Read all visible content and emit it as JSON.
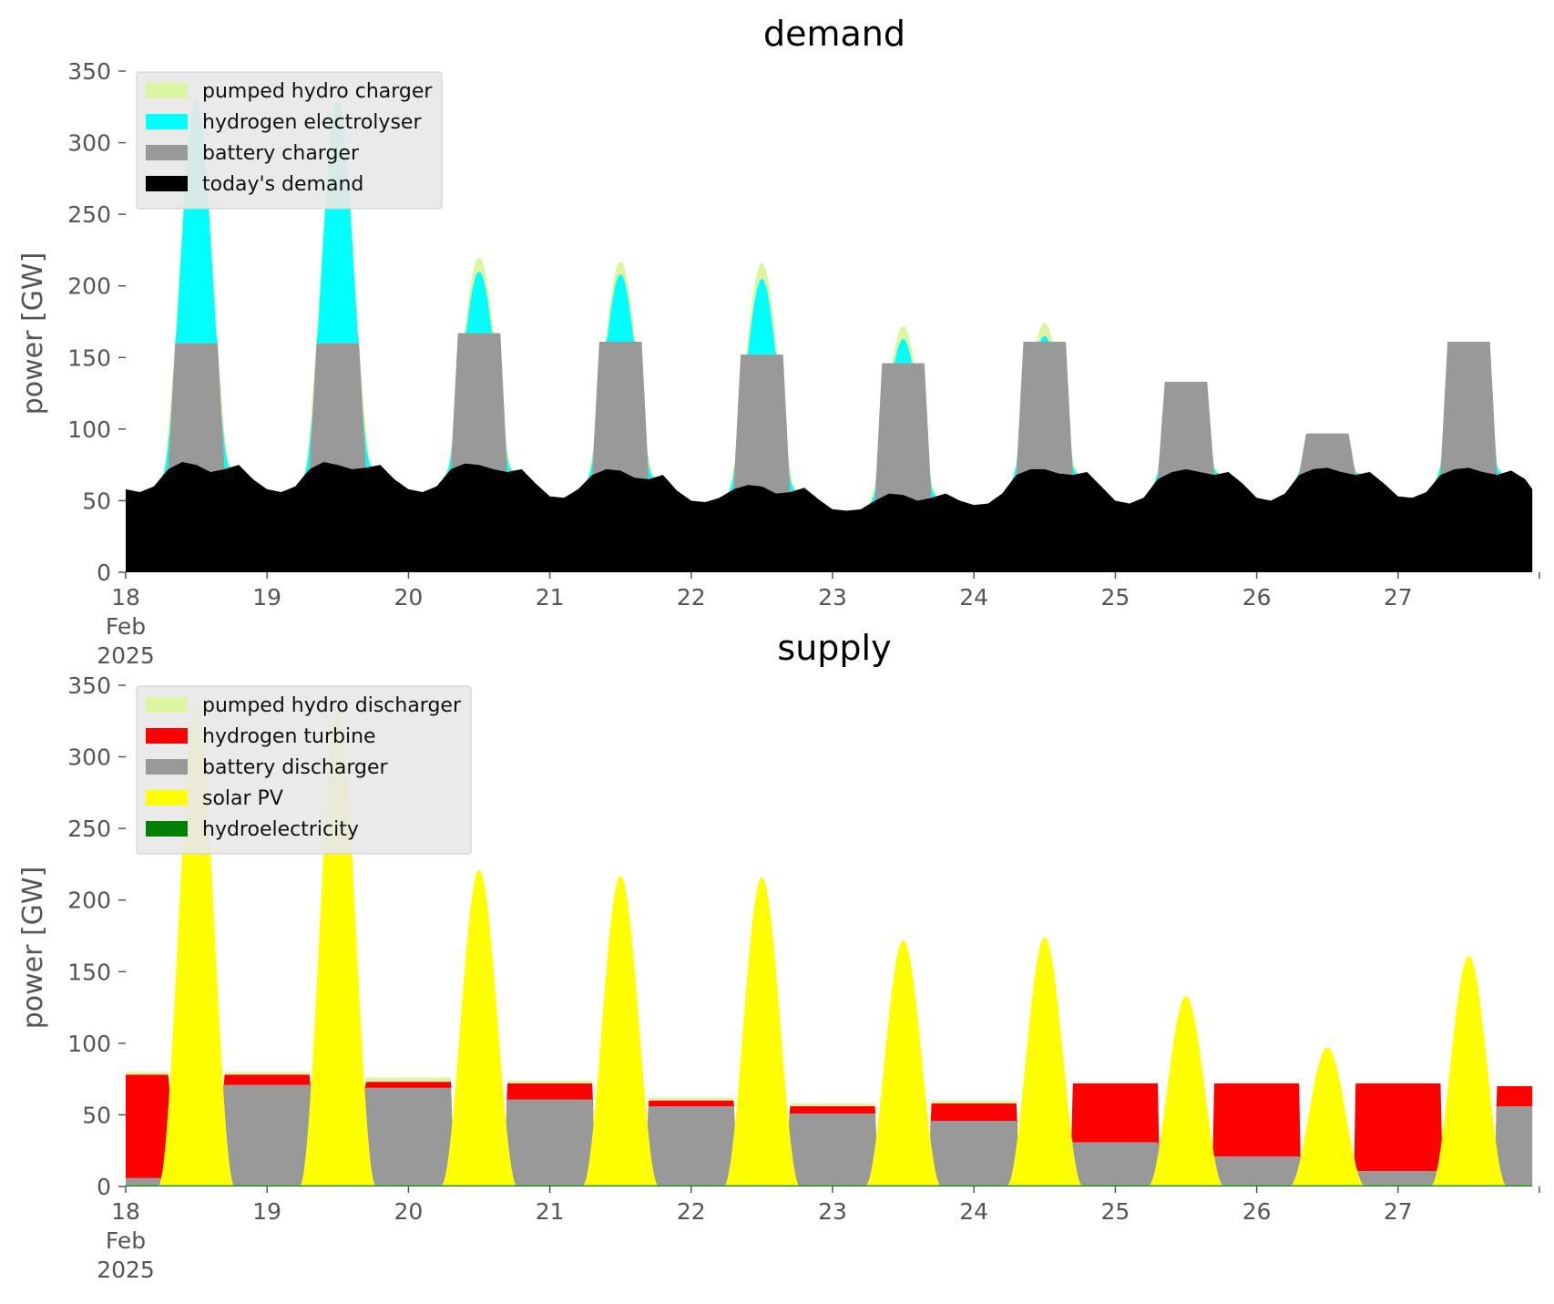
{
  "chart_data": [
    {
      "type": "area",
      "title": "demand",
      "xlabel": "",
      "ylabel": "power [GW]",
      "ylim": [
        0,
        350
      ],
      "yticks": [
        0,
        50,
        100,
        150,
        200,
        250,
        300,
        350
      ],
      "x_tick_labels": [
        [
          "18",
          "Feb",
          "2025"
        ],
        [
          "19"
        ],
        [
          "20"
        ],
        [
          "21"
        ],
        [
          "22"
        ],
        [
          "23"
        ],
        [
          "24"
        ],
        [
          "25"
        ],
        [
          "26"
        ],
        [
          "27"
        ]
      ],
      "x_range_days": [
        18,
        28
      ],
      "grid": false,
      "legend_placement": "top-left",
      "stacking": "stacked",
      "legend": [
        {
          "label": "pumped hydro charger",
          "color": "#dcf5a0"
        },
        {
          "label": "hydrogen electrolyser",
          "color": "#00ffff"
        },
        {
          "label": "battery charger",
          "color": "#999999"
        },
        {
          "label": "today's demand",
          "color": "#000000"
        }
      ],
      "baseline": {
        "name": "today's demand",
        "color": "#000000",
        "points": [
          [
            18.0,
            58
          ],
          [
            18.1,
            56
          ],
          [
            18.2,
            60
          ],
          [
            18.3,
            72
          ],
          [
            18.4,
            77
          ],
          [
            18.5,
            75
          ],
          [
            18.6,
            70
          ],
          [
            18.7,
            72
          ],
          [
            18.8,
            75
          ],
          [
            18.9,
            65
          ],
          [
            19.0,
            58
          ],
          [
            19.1,
            56
          ],
          [
            19.2,
            60
          ],
          [
            19.3,
            72
          ],
          [
            19.4,
            77
          ],
          [
            19.5,
            75
          ],
          [
            19.6,
            72
          ],
          [
            19.7,
            73
          ],
          [
            19.8,
            75
          ],
          [
            19.9,
            65
          ],
          [
            20.0,
            58
          ],
          [
            20.1,
            56
          ],
          [
            20.2,
            60
          ],
          [
            20.3,
            72
          ],
          [
            20.4,
            76
          ],
          [
            20.5,
            75
          ],
          [
            20.6,
            72
          ],
          [
            20.7,
            70
          ],
          [
            20.8,
            72
          ],
          [
            20.9,
            62
          ],
          [
            21.0,
            53
          ],
          [
            21.1,
            52
          ],
          [
            21.2,
            58
          ],
          [
            21.3,
            68
          ],
          [
            21.4,
            72
          ],
          [
            21.5,
            71
          ],
          [
            21.6,
            66
          ],
          [
            21.7,
            65
          ],
          [
            21.8,
            68
          ],
          [
            21.9,
            57
          ],
          [
            22.0,
            50
          ],
          [
            22.1,
            49
          ],
          [
            22.2,
            52
          ],
          [
            22.3,
            58
          ],
          [
            22.4,
            61
          ],
          [
            22.5,
            60
          ],
          [
            22.6,
            55
          ],
          [
            22.7,
            56
          ],
          [
            22.8,
            59
          ],
          [
            22.9,
            51
          ],
          [
            23.0,
            44
          ],
          [
            23.1,
            43
          ],
          [
            23.2,
            44
          ],
          [
            23.3,
            50
          ],
          [
            23.4,
            55
          ],
          [
            23.5,
            54
          ],
          [
            23.6,
            50
          ],
          [
            23.7,
            52
          ],
          [
            23.8,
            55
          ],
          [
            23.9,
            50
          ],
          [
            24.0,
            47
          ],
          [
            24.1,
            48
          ],
          [
            24.2,
            55
          ],
          [
            24.3,
            68
          ],
          [
            24.4,
            72
          ],
          [
            24.5,
            72
          ],
          [
            24.6,
            69
          ],
          [
            24.7,
            68
          ],
          [
            24.8,
            70
          ],
          [
            24.9,
            60
          ],
          [
            25.0,
            50
          ],
          [
            25.1,
            48
          ],
          [
            25.2,
            52
          ],
          [
            25.3,
            65
          ],
          [
            25.4,
            70
          ],
          [
            25.5,
            72
          ],
          [
            25.6,
            70
          ],
          [
            25.7,
            68
          ],
          [
            25.8,
            70
          ],
          [
            25.9,
            62
          ],
          [
            26.0,
            52
          ],
          [
            26.1,
            50
          ],
          [
            26.2,
            55
          ],
          [
            26.3,
            68
          ],
          [
            26.4,
            72
          ],
          [
            26.5,
            73
          ],
          [
            26.6,
            70
          ],
          [
            26.7,
            68
          ],
          [
            26.8,
            70
          ],
          [
            26.9,
            62
          ],
          [
            27.0,
            53
          ],
          [
            27.1,
            52
          ],
          [
            27.2,
            56
          ],
          [
            27.3,
            68
          ],
          [
            27.4,
            72
          ],
          [
            27.5,
            73
          ],
          [
            27.6,
            70
          ],
          [
            27.7,
            68
          ],
          [
            27.8,
            71
          ],
          [
            27.9,
            65
          ],
          [
            27.95,
            58
          ]
        ]
      },
      "peaks": [
        {
          "day": 18,
          "battery": 160,
          "hydrogen": 330,
          "pumped": 335
        },
        {
          "day": 19,
          "battery": 160,
          "hydrogen": 330,
          "pumped": 335
        },
        {
          "day": 20,
          "battery": 167,
          "hydrogen": 210,
          "pumped": 220
        },
        {
          "day": 21,
          "battery": 161,
          "hydrogen": 208,
          "pumped": 217
        },
        {
          "day": 22,
          "battery": 152,
          "hydrogen": 205,
          "pumped": 216
        },
        {
          "day": 23,
          "battery": 146,
          "hydrogen": 163,
          "pumped": 172
        },
        {
          "day": 24,
          "battery": 161,
          "hydrogen": 165,
          "pumped": 174
        },
        {
          "day": 25,
          "battery": 133,
          "hydrogen": 133,
          "pumped": 133
        },
        {
          "day": 26,
          "battery": 97,
          "hydrogen": 97,
          "pumped": 97
        },
        {
          "day": 27,
          "battery": 161,
          "hydrogen": 161,
          "pumped": 161
        }
      ]
    },
    {
      "type": "area",
      "title": "supply",
      "xlabel": "",
      "ylabel": "power [GW]",
      "ylim": [
        0,
        350
      ],
      "yticks": [
        0,
        50,
        100,
        150,
        200,
        250,
        300,
        350
      ],
      "x_tick_labels": [
        [
          "18",
          "Feb",
          "2025"
        ],
        [
          "19"
        ],
        [
          "20"
        ],
        [
          "21"
        ],
        [
          "22"
        ],
        [
          "23"
        ],
        [
          "24"
        ],
        [
          "25"
        ],
        [
          "26"
        ],
        [
          "27"
        ]
      ],
      "x_range_days": [
        18,
        28
      ],
      "grid": false,
      "legend_placement": "top-left",
      "stacking": "stacked",
      "legend": [
        {
          "label": "pumped hydro discharger",
          "color": "#dcf5a0"
        },
        {
          "label": "hydrogen turbine",
          "color": "#ff0000"
        },
        {
          "label": "battery discharger",
          "color": "#999999"
        },
        {
          "label": "solar PV",
          "color": "#ffff00"
        },
        {
          "label": "hydroelectricity",
          "color": "#008000"
        }
      ],
      "night_segments": [
        {
          "from": 17.75,
          "to": 18.3,
          "battery": 5,
          "hydrogen_top": 78,
          "pumped_top": 80,
          "battery_from": 18.0
        },
        {
          "from": 18.7,
          "to": 19.3,
          "battery": 70,
          "hydrogen_top": 78,
          "pumped_top": 80
        },
        {
          "from": 19.7,
          "to": 20.3,
          "battery": 68,
          "hydrogen_top": 73,
          "pumped_top": 76
        },
        {
          "from": 20.7,
          "to": 21.3,
          "battery": 60,
          "hydrogen_top": 72,
          "pumped_top": 74
        },
        {
          "from": 21.7,
          "to": 22.3,
          "battery": 55,
          "hydrogen_top": 60,
          "pumped_top": 62
        },
        {
          "from": 22.7,
          "to": 23.3,
          "battery": 50,
          "hydrogen_top": 56,
          "pumped_top": 58
        },
        {
          "from": 23.7,
          "to": 24.3,
          "battery": 45,
          "hydrogen_top": 58,
          "pumped_top": 60
        },
        {
          "from": 24.7,
          "to": 25.3,
          "battery": 30,
          "hydrogen_top": 72,
          "pumped_top": 72
        },
        {
          "from": 25.7,
          "to": 26.3,
          "battery": 20,
          "hydrogen_top": 72,
          "pumped_top": 72
        },
        {
          "from": 26.7,
          "to": 27.3,
          "battery": 10,
          "hydrogen_top": 72,
          "pumped_top": 72
        },
        {
          "from": 27.7,
          "to": 27.95,
          "battery": 55,
          "hydrogen_top": 70,
          "pumped_top": 70
        }
      ],
      "solar_peaks": [
        {
          "day": 18,
          "value": 335
        },
        {
          "day": 19,
          "value": 335
        },
        {
          "day": 20,
          "value": 221
        },
        {
          "day": 21,
          "value": 217
        },
        {
          "day": 22,
          "value": 216
        },
        {
          "day": 23,
          "value": 172
        },
        {
          "day": 24,
          "value": 174
        },
        {
          "day": 25,
          "value": 133
        },
        {
          "day": 26,
          "value": 97
        },
        {
          "day": 27,
          "value": 161
        }
      ]
    }
  ]
}
